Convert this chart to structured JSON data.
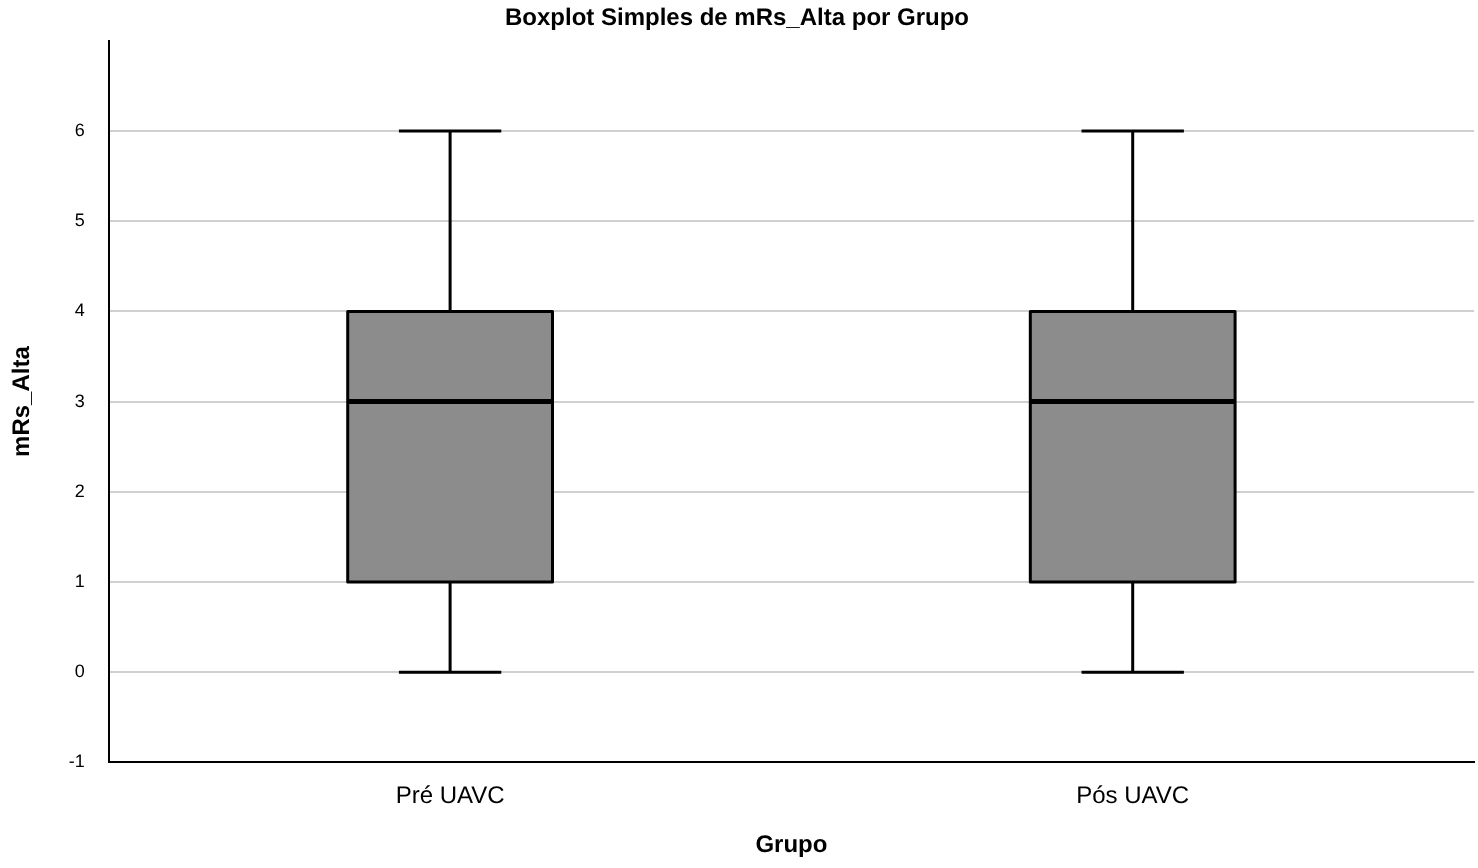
{
  "chart_data": {
    "type": "box",
    "title": "Boxplot Simples de mRs_Alta por Grupo",
    "xlabel": "Grupo",
    "ylabel": "mRs_Alta",
    "categories": [
      "Pré UAVC",
      "Pós UAVC"
    ],
    "boxes": [
      {
        "low": 0,
        "q1": 1,
        "median": 3,
        "q3": 4,
        "high": 6
      },
      {
        "low": 0,
        "q1": 1,
        "median": 3,
        "q3": 4,
        "high": 6
      }
    ],
    "color": "#8c8c8c",
    "ylim": [
      -1,
      7
    ],
    "yticks": [
      -1,
      0,
      1,
      2,
      3,
      4,
      5,
      6
    ],
    "grid": "y"
  }
}
